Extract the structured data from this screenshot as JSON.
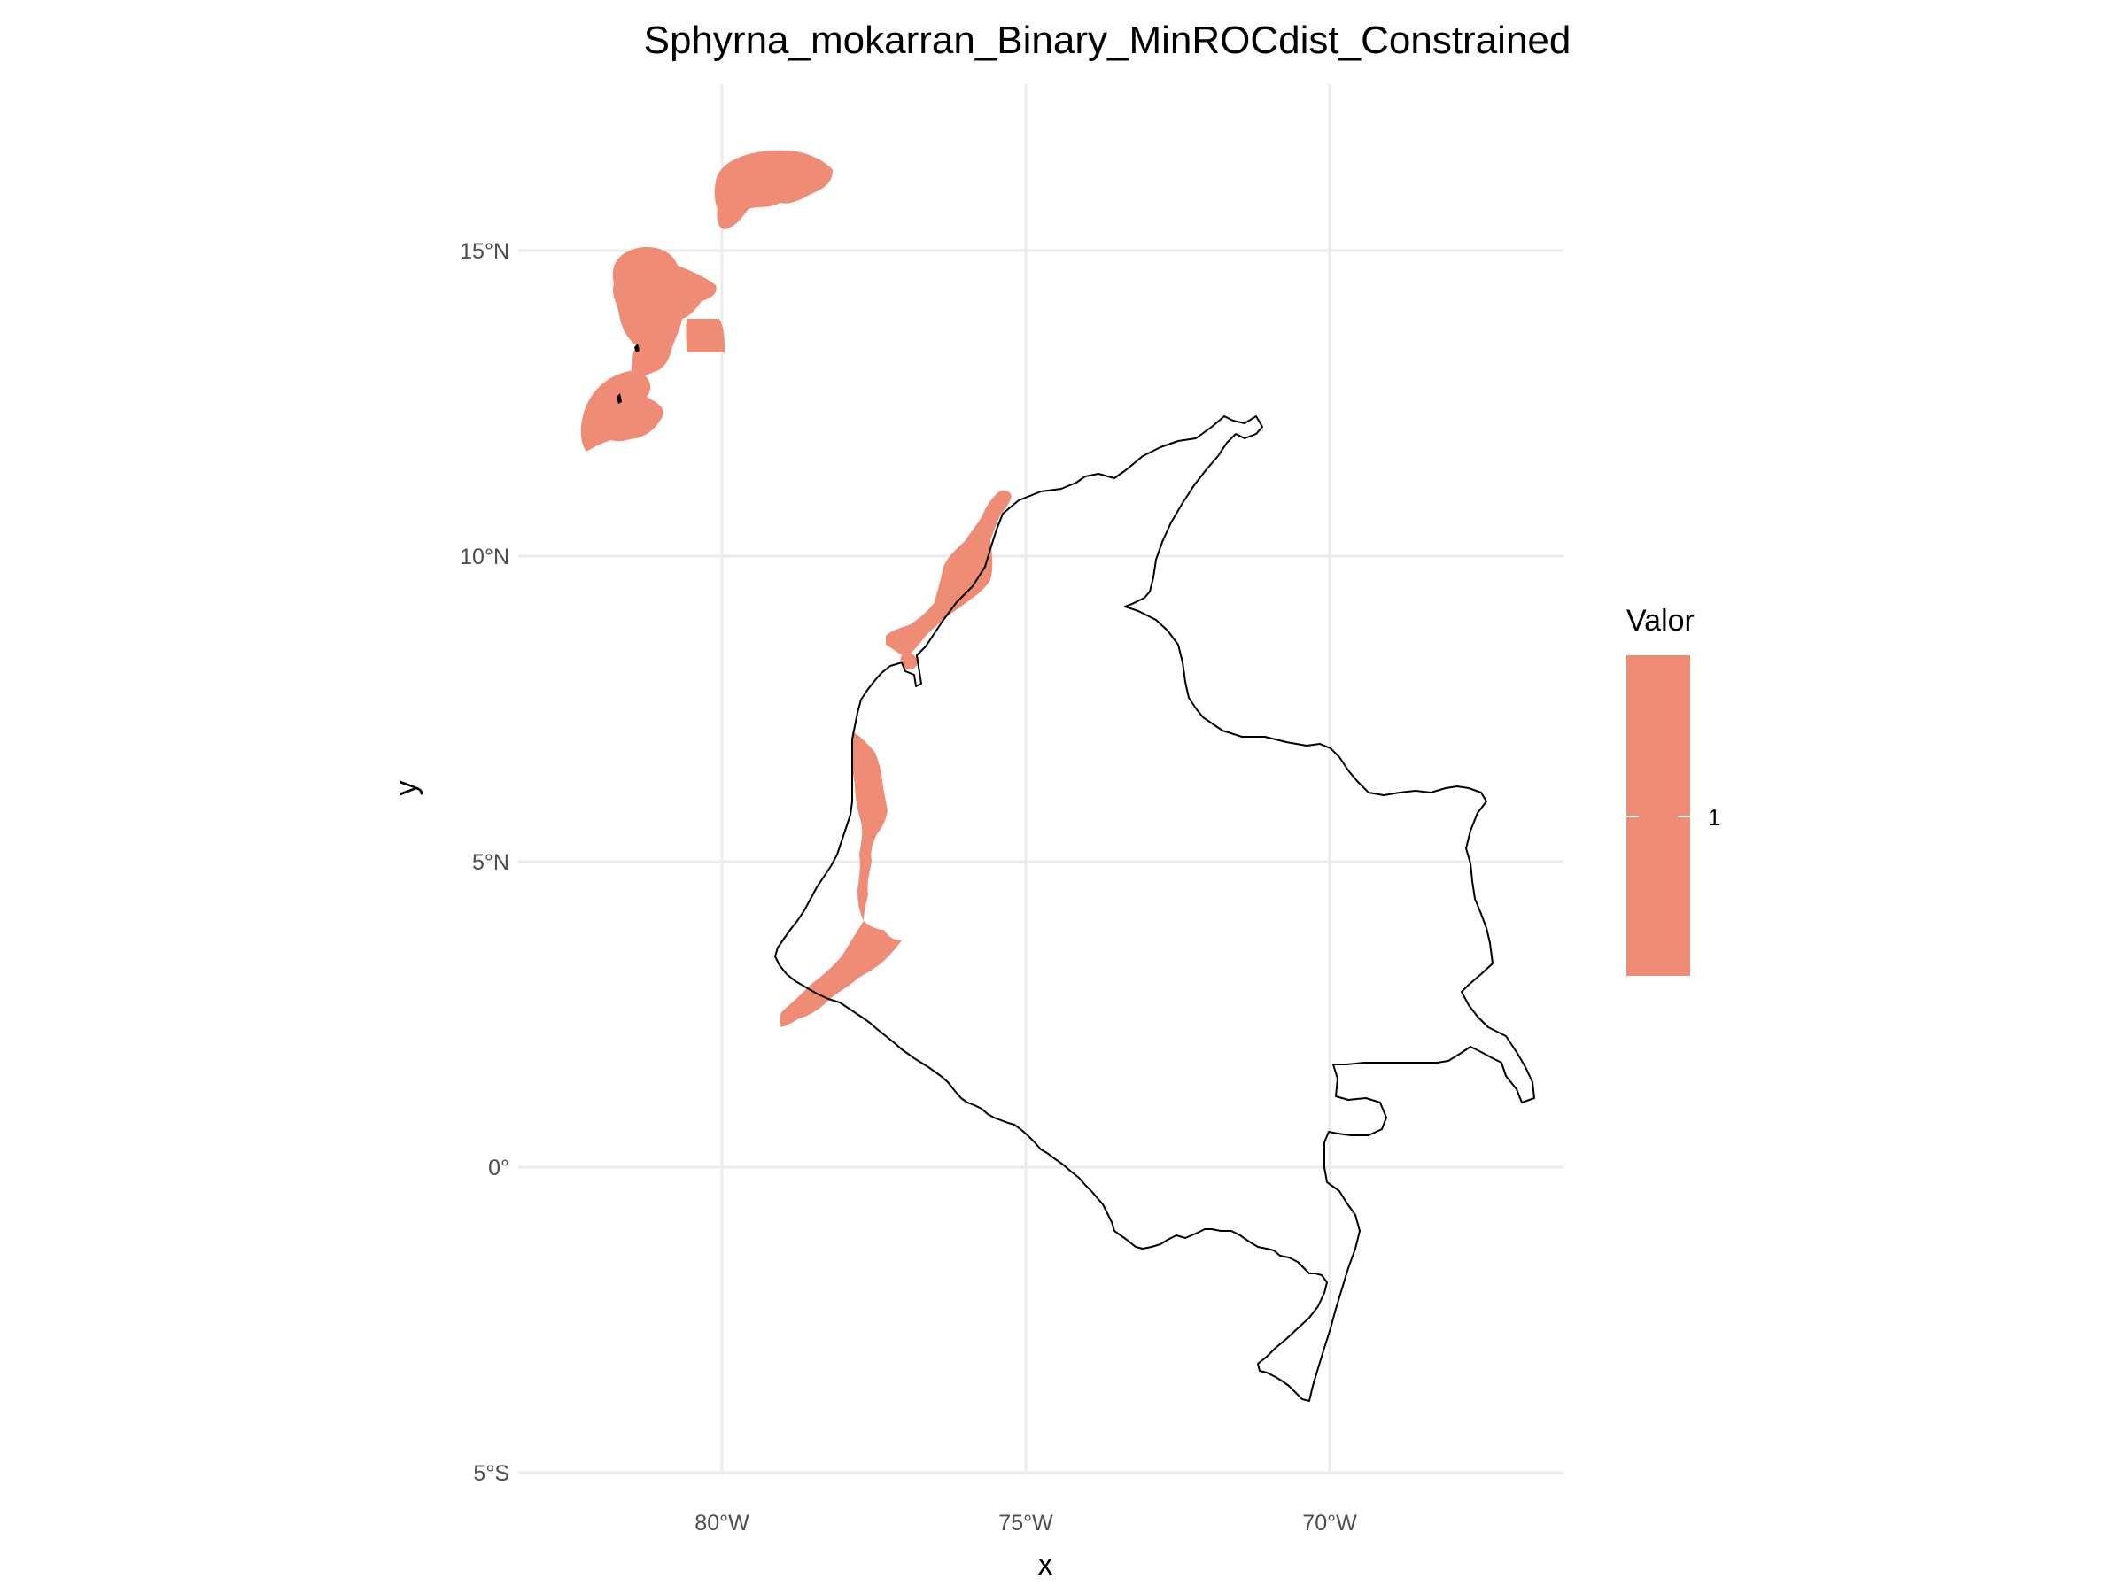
{
  "title": "Sphyrna_mokarran_Binary_MinROCdist_Constrained",
  "xlabel": "x",
  "ylabel": "y",
  "fill_color": "#ee8c76",
  "boundary_color": "#000000",
  "legend": {
    "title": "Valor",
    "entries": [
      {
        "value": 1,
        "label": "1"
      }
    ]
  },
  "chart_data": {
    "type": "map",
    "title": "Sphyrna_mokarran_Binary_MinROCdist_Constrained",
    "xlabel": "x",
    "ylabel": "y",
    "grid": true,
    "legend_position": "right",
    "x_ticks": [
      {
        "value": -80,
        "label": "80°W"
      },
      {
        "value": -75,
        "label": "75°W"
      },
      {
        "value": -70,
        "label": "70°W"
      }
    ],
    "y_ticks": [
      {
        "value": 15,
        "label": "15°N"
      },
      {
        "value": 10,
        "label": "10°N"
      },
      {
        "value": 5,
        "label": "5°N"
      },
      {
        "value": 0,
        "label": "0°"
      },
      {
        "value": -5,
        "label": "5°S"
      }
    ],
    "xlim": [
      -83.4,
      -66.1
    ],
    "ylim": [
      -5.6,
      17.5
    ],
    "layers": [
      {
        "name": "suitable-area",
        "value": 1,
        "regions": [
          "caribbean-islands-north",
          "caribbean-islands-middle",
          "caribbean-islands-south",
          "caribbean-coast",
          "pacific-coast-north",
          "pacific-coast-south"
        ]
      },
      {
        "name": "country-boundary",
        "outline": true
      }
    ]
  }
}
